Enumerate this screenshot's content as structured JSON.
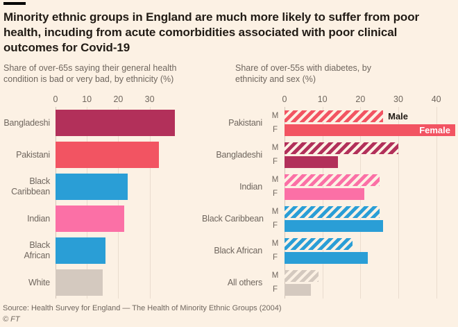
{
  "header": {
    "title": "Minority ethnic groups in England are much more likely to suffer from poor health, incuding from acute comorbidities associated with poor clinical outcomes for Covid-19"
  },
  "footer": {
    "source": "Source: Health Survey for England — The Health of Minority Ethnic Groups (2004)",
    "copyright": "© FT"
  },
  "colors": {
    "background": "#FCF1E4",
    "claret": "#B2305A",
    "red": "#F25462",
    "blue": "#2A9ED6",
    "pink": "#FB70A6",
    "grey": "#D4C9BF",
    "text_dark": "#211B15",
    "text_muted": "#6F665E",
    "gridline": "#EADCCE",
    "axis_line": "#D3C5B8"
  },
  "chart_data": [
    {
      "type": "bar",
      "orientation": "horizontal",
      "title": "Share of over-65s saying their general health condition is bad or very bad, by ethnicity (%)",
      "categories": [
        "Bangladeshi",
        "Pakistani",
        "Black Caribbean",
        "Indian",
        "Black African",
        "White"
      ],
      "values": [
        38,
        33,
        23,
        22,
        16,
        15
      ],
      "bar_colors": [
        "claret",
        "red",
        "blue",
        "pink",
        "blue",
        "grey"
      ],
      "xticks": [
        0,
        10,
        20,
        30
      ],
      "xlim": [
        0,
        50
      ],
      "grid": true,
      "unit": "%"
    },
    {
      "type": "grouped-bar",
      "orientation": "horizontal",
      "title": "Share of over-55s with diabetes, by ethnicity and sex (%)",
      "categories": [
        "Pakistani",
        "Bangladeshi",
        "Indian",
        "Black Caribbean",
        "Black African",
        "All others"
      ],
      "row_keys": [
        "M",
        "F"
      ],
      "series": [
        {
          "name": "Male",
          "pattern": "hatched",
          "values": [
            26,
            30,
            25,
            25,
            18,
            9
          ]
        },
        {
          "name": "Female",
          "pattern": "solid",
          "values": [
            45,
            14,
            21,
            26,
            22,
            7
          ]
        }
      ],
      "group_colors": [
        "red",
        "claret",
        "pink",
        "blue",
        "blue",
        "grey"
      ],
      "xticks": [
        0,
        10,
        20,
        30,
        40
      ],
      "xlim": [
        0,
        45
      ],
      "legend_position": "inline-first-group",
      "grid": true,
      "unit": "%"
    }
  ]
}
